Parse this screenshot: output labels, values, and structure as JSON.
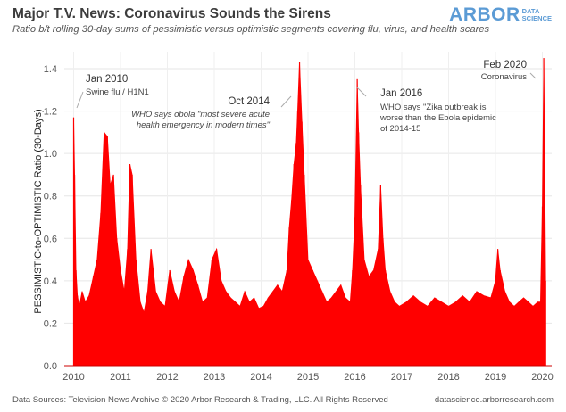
{
  "header": {
    "title": "Major T.V. News: Coronavirus Sounds the Sirens",
    "subtitle": "Ratio b/t rolling 30-day sums of pessimistic versus optimistic segments covering flu, virus, and health scares",
    "logo_main": "ARBOR",
    "logo_sub_1": "DATA",
    "logo_sub_2": "SCIENCE"
  },
  "footer": {
    "source": "Data Sources: Television News Archive © 2020 Arbor Research & Trading, LLC. All Rights Reserved",
    "website": "datascience.arborresearch.com"
  },
  "colors": {
    "series": "#ff0000",
    "annotation_line": "#aaaaaa"
  },
  "chart_data": {
    "type": "area",
    "title": "Major T.V. News: Coronavirus Sounds the Sirens",
    "ylabel": "PESSIMISTIC-to-OPTIMISTIC Ratio (30-Days)",
    "xlabel": "",
    "ylim": [
      0,
      1.48
    ],
    "xlim": [
      2009.8,
      2020.2
    ],
    "y_ticks": [
      "0.0",
      "0.2",
      "0.4",
      "0.6",
      "0.8",
      "1.0",
      "1.2",
      "1.4"
    ],
    "x_ticks": [
      "2010",
      "2011",
      "2012",
      "2013",
      "2014",
      "2015",
      "2016",
      "2017",
      "2018",
      "2019",
      "2020"
    ],
    "grid": true,
    "series": [
      {
        "x": [
          2010.0,
          2010.02,
          2010.05,
          2010.08,
          2010.12,
          2010.18,
          2010.25,
          2010.33,
          2010.42,
          2010.5,
          2010.58,
          2010.65,
          2010.72,
          2010.78,
          2010.85,
          2010.92,
          2011.0,
          2011.08,
          2011.15,
          2011.2,
          2011.25,
          2011.33,
          2011.42,
          2011.5,
          2011.58,
          2011.65,
          2011.75,
          2011.85,
          2011.95,
          2012.05,
          2012.15,
          2012.25,
          2012.35,
          2012.45,
          2012.55,
          2012.65,
          2012.75,
          2012.85,
          2012.95,
          2013.05,
          2013.15,
          2013.25,
          2013.35,
          2013.45,
          2013.55,
          2013.65,
          2013.75,
          2013.85,
          2013.95,
          2014.05,
          2014.15,
          2014.25,
          2014.35,
          2014.45,
          2014.55,
          2014.6,
          2014.65,
          2014.7,
          2014.75,
          2014.78,
          2014.82,
          2014.87,
          2014.92,
          2015.0,
          2015.1,
          2015.2,
          2015.3,
          2015.4,
          2015.5,
          2015.6,
          2015.7,
          2015.8,
          2015.9,
          2015.95,
          2016.0,
          2016.05,
          2016.08,
          2016.12,
          2016.2,
          2016.3,
          2016.4,
          2016.5,
          2016.55,
          2016.6,
          2016.65,
          2016.75,
          2016.85,
          2016.95,
          2017.1,
          2017.25,
          2017.4,
          2017.55,
          2017.7,
          2017.85,
          2018.0,
          2018.15,
          2018.3,
          2018.45,
          2018.6,
          2018.75,
          2018.9,
          2019.0,
          2019.05,
          2019.1,
          2019.2,
          2019.3,
          2019.4,
          2019.5,
          2019.6,
          2019.7,
          2019.8,
          2019.9,
          2019.96,
          2020.0,
          2020.03,
          2020.05,
          2020.07
        ],
        "y": [
          1.17,
          0.9,
          0.45,
          0.33,
          0.28,
          0.35,
          0.3,
          0.33,
          0.42,
          0.5,
          0.72,
          1.1,
          1.08,
          0.85,
          0.9,
          0.6,
          0.45,
          0.35,
          0.55,
          0.95,
          0.9,
          0.5,
          0.3,
          0.25,
          0.35,
          0.55,
          0.35,
          0.3,
          0.28,
          0.45,
          0.35,
          0.3,
          0.42,
          0.5,
          0.45,
          0.38,
          0.3,
          0.32,
          0.5,
          0.55,
          0.4,
          0.35,
          0.32,
          0.3,
          0.28,
          0.35,
          0.3,
          0.32,
          0.27,
          0.28,
          0.32,
          0.35,
          0.38,
          0.35,
          0.45,
          0.65,
          0.78,
          0.95,
          1.05,
          1.2,
          1.43,
          1.15,
          0.9,
          0.5,
          0.45,
          0.4,
          0.35,
          0.3,
          0.32,
          0.35,
          0.38,
          0.32,
          0.3,
          0.45,
          0.7,
          1.35,
          1.1,
          0.85,
          0.5,
          0.42,
          0.45,
          0.55,
          0.85,
          0.6,
          0.45,
          0.35,
          0.3,
          0.28,
          0.3,
          0.33,
          0.3,
          0.28,
          0.32,
          0.3,
          0.28,
          0.3,
          0.33,
          0.3,
          0.35,
          0.33,
          0.32,
          0.4,
          0.55,
          0.45,
          0.35,
          0.3,
          0.28,
          0.3,
          0.32,
          0.3,
          0.28,
          0.3,
          0.3,
          0.75,
          1.45,
          1.0,
          0.4
        ]
      }
    ],
    "annotations": [
      {
        "date": "Jan 2010",
        "text": "Swine flu / H1N1"
      },
      {
        "date": "Oct 2014",
        "text_lines": [
          "WHO says obola \"most severe acute",
          "health emergency in modern times\""
        ]
      },
      {
        "date": "Jan 2016",
        "text_lines": [
          "WHO says \"Zika outbreak is",
          "worse than the Ebola epidemic",
          "of 2014-15"
        ]
      },
      {
        "date": "Feb 2020",
        "text": "Coronavirus"
      }
    ]
  }
}
